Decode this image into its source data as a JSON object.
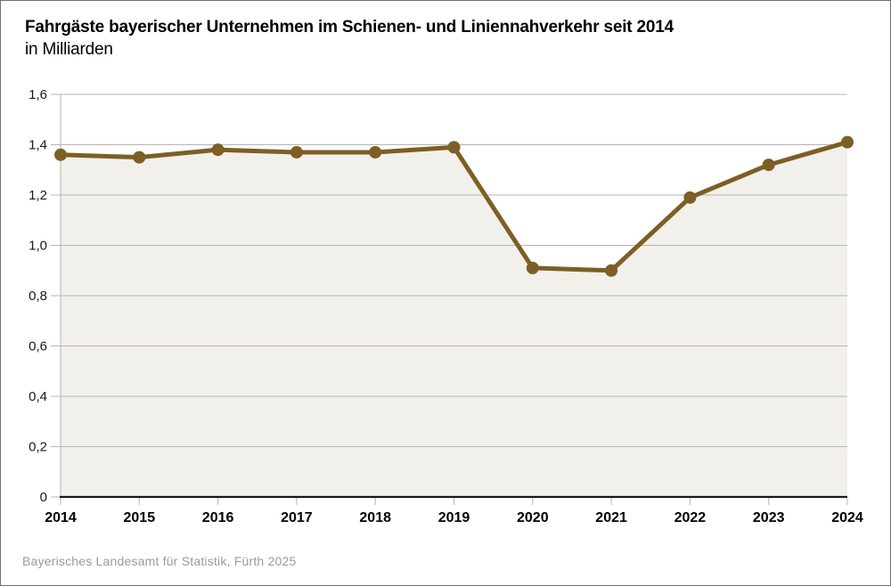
{
  "header": {
    "title": "Fahrgäste bayerischer Unternehmen im Schienen- und Liniennahverkehr seit 2014",
    "subtitle": "in Milliarden"
  },
  "footer": {
    "source": "Bayerisches Landesamt für Statistik, Fürth 2025"
  },
  "chart_data": {
    "type": "line",
    "title": "Fahrgäste bayerischer Unternehmen im Schienen- und Liniennahverkehr seit 2014",
    "subtitle": "in Milliarden",
    "categories": [
      "2014",
      "2015",
      "2016",
      "2017",
      "2018",
      "2019",
      "2020",
      "2021",
      "2022",
      "2023",
      "2024"
    ],
    "values": [
      1.36,
      1.35,
      1.38,
      1.37,
      1.37,
      1.39,
      0.91,
      0.9,
      1.19,
      1.32,
      1.41
    ],
    "xlabel": "",
    "ylabel": "in Milliarden",
    "ylim": [
      0,
      1.6
    ],
    "y_ticks": [
      0,
      0.2,
      0.4,
      0.6,
      0.8,
      1.0,
      1.2,
      1.4,
      1.6
    ],
    "y_tick_labels": [
      "0",
      "0,2",
      "0,4",
      "0,6",
      "0,8",
      "1,0",
      "1,2",
      "1,4",
      "1,6"
    ],
    "grid": true,
    "legend": false,
    "area_filled": true,
    "colors": {
      "line": "#7d5e25",
      "marker": "#7d5e25",
      "area_fill": "#f2f0ea",
      "grid": "#b5b5b5",
      "axis": "#1a1a1a",
      "tick_text": "#1a1a1a",
      "source_text": "#9a9a9a"
    }
  }
}
